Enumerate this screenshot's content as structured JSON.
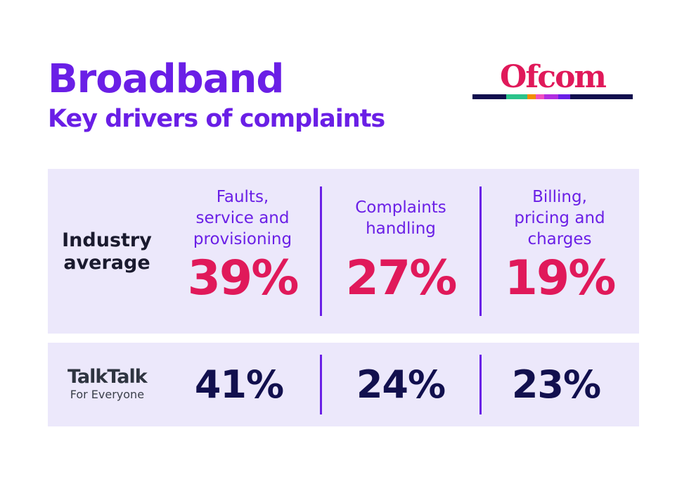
{
  "header": {
    "title": "Broadband",
    "subtitle": "Key drivers of complaints"
  },
  "logo": {
    "text": "Ofcom",
    "bar_colors": [
      "#12104e",
      "#2bc38a",
      "#f28c00",
      "#f04fc0",
      "#b12de0",
      "#6a1fe6",
      "#12104e"
    ]
  },
  "colors": {
    "accent": "#6a1fe6",
    "highlight": "#e0195a",
    "navy": "#12104e",
    "panel": "#ece8fb"
  },
  "categories": [
    {
      "label": "Faults, service and provisioning",
      "lines": [
        "Faults,",
        "service and",
        "provisioning"
      ]
    },
    {
      "label": "Complaints handling",
      "lines": [
        "Complaints",
        "handling"
      ]
    },
    {
      "label": "Billing, pricing and charges",
      "lines": [
        "Billing,",
        "pricing and",
        "charges"
      ]
    }
  ],
  "industry": {
    "label_lines": [
      "Industry",
      "average"
    ],
    "values": [
      "39%",
      "27%",
      "19%"
    ]
  },
  "talktalk": {
    "brand": "TalkTalk",
    "tagline": "For Everyone",
    "values": [
      "41%",
      "24%",
      "23%"
    ]
  }
}
